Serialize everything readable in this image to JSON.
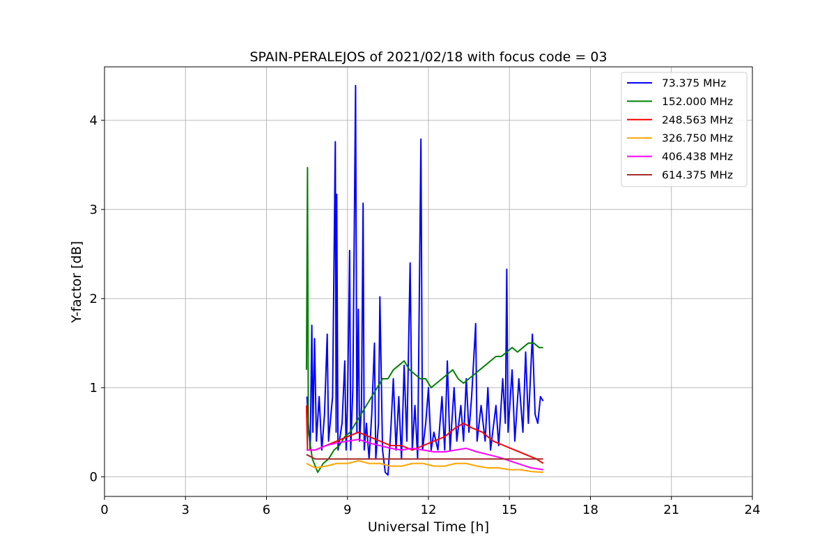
{
  "chart_data": {
    "type": "line",
    "title": "SPAIN-PERALEJOS of 2021/02/18 with focus code = 03",
    "xlabel": "Universal Time [h]",
    "ylabel": "Y-factor [dB]",
    "xlim": [
      0,
      24
    ],
    "ylim": [
      -0.22,
      4.6
    ],
    "xticks": [
      0,
      3,
      6,
      9,
      12,
      15,
      18,
      21,
      24
    ],
    "yticks": [
      0,
      1,
      2,
      3,
      4
    ],
    "grid": true,
    "legend_position": "top-right",
    "series": [
      {
        "name": " 73.375 MHz",
        "color": "#0000ff",
        "points": [
          [
            7.5,
            0.9
          ],
          [
            7.55,
            0.6
          ],
          [
            7.62,
            0.3
          ],
          [
            7.68,
            1.7
          ],
          [
            7.72,
            0.5
          ],
          [
            7.78,
            1.55
          ],
          [
            7.85,
            0.4
          ],
          [
            7.95,
            0.9
          ],
          [
            8.05,
            0.3
          ],
          [
            8.15,
            0.7
          ],
          [
            8.25,
            1.6
          ],
          [
            8.3,
            0.4
          ],
          [
            8.45,
            0.9
          ],
          [
            8.55,
            3.76
          ],
          [
            8.58,
            0.5
          ],
          [
            8.6,
            3.17
          ],
          [
            8.65,
            0.3
          ],
          [
            8.8,
            0.6
          ],
          [
            8.9,
            1.3
          ],
          [
            8.95,
            0.3
          ],
          [
            9.0,
            0.8
          ],
          [
            9.08,
            2.54
          ],
          [
            9.12,
            0.3
          ],
          [
            9.2,
            1.0
          ],
          [
            9.3,
            4.39
          ],
          [
            9.35,
            0.5
          ],
          [
            9.4,
            1.88
          ],
          [
            9.45,
            0.4
          ],
          [
            9.52,
            0.8
          ],
          [
            9.58,
            3.07
          ],
          [
            9.62,
            0.3
          ],
          [
            9.7,
            0.6
          ],
          [
            9.8,
            0.2
          ],
          [
            9.9,
            0.7
          ],
          [
            10.0,
            1.5
          ],
          [
            10.05,
            0.2
          ],
          [
            10.15,
            0.6
          ],
          [
            10.2,
            2.02
          ],
          [
            10.3,
            0.3
          ],
          [
            10.4,
            0.05
          ],
          [
            10.5,
            0.02
          ],
          [
            10.6,
            0.5
          ],
          [
            10.7,
            1.1
          ],
          [
            10.8,
            0.3
          ],
          [
            10.9,
            0.9
          ],
          [
            11.0,
            0.2
          ],
          [
            11.1,
            1.25
          ],
          [
            11.2,
            0.4
          ],
          [
            11.32,
            2.4
          ],
          [
            11.4,
            0.3
          ],
          [
            11.5,
            0.8
          ],
          [
            11.6,
            0.2
          ],
          [
            11.72,
            3.79
          ],
          [
            11.78,
            0.3
          ],
          [
            11.9,
            0.6
          ],
          [
            12.0,
            1.0
          ],
          [
            12.1,
            0.3
          ],
          [
            12.2,
            0.5
          ],
          [
            12.35,
            0.3
          ],
          [
            12.5,
            0.9
          ],
          [
            12.6,
            0.3
          ],
          [
            12.7,
            1.3
          ],
          [
            12.8,
            0.3
          ],
          [
            12.95,
            1.0
          ],
          [
            13.05,
            0.4
          ],
          [
            13.2,
            0.8
          ],
          [
            13.3,
            0.4
          ],
          [
            13.4,
            1.1
          ],
          [
            13.5,
            0.5
          ],
          [
            13.6,
            0.9
          ],
          [
            13.75,
            1.72
          ],
          [
            13.8,
            0.4
          ],
          [
            13.95,
            0.8
          ],
          [
            14.1,
            0.4
          ],
          [
            14.2,
            1.0
          ],
          [
            14.3,
            0.3
          ],
          [
            14.5,
            0.8
          ],
          [
            14.6,
            0.35
          ],
          [
            14.75,
            1.1
          ],
          [
            14.85,
            0.6
          ],
          [
            14.9,
            2.33
          ],
          [
            14.95,
            0.5
          ],
          [
            15.1,
            1.2
          ],
          [
            15.2,
            0.4
          ],
          [
            15.35,
            1.1
          ],
          [
            15.5,
            0.5
          ],
          [
            15.6,
            1.4
          ],
          [
            15.7,
            0.6
          ],
          [
            15.85,
            1.6
          ],
          [
            15.95,
            0.7
          ],
          [
            16.05,
            0.6
          ],
          [
            16.15,
            0.9
          ],
          [
            16.25,
            0.85
          ]
        ]
      },
      {
        "name": "152.000 MHz",
        "color": "#008000",
        "points": [
          [
            7.48,
            1.2
          ],
          [
            7.52,
            3.47
          ],
          [
            7.55,
            0.5
          ],
          [
            7.7,
            0.2
          ],
          [
            7.9,
            0.05
          ],
          [
            8.1,
            0.15
          ],
          [
            8.3,
            0.2
          ],
          [
            8.5,
            0.3
          ],
          [
            8.7,
            0.35
          ],
          [
            8.9,
            0.45
          ],
          [
            9.1,
            0.5
          ],
          [
            9.3,
            0.6
          ],
          [
            9.5,
            0.7
          ],
          [
            9.7,
            0.8
          ],
          [
            9.9,
            0.9
          ],
          [
            10.1,
            1.0
          ],
          [
            10.3,
            1.1
          ],
          [
            10.5,
            1.1
          ],
          [
            10.7,
            1.2
          ],
          [
            10.9,
            1.25
          ],
          [
            11.1,
            1.3
          ],
          [
            11.3,
            1.2
          ],
          [
            11.5,
            1.15
          ],
          [
            11.7,
            1.1
          ],
          [
            11.9,
            1.1
          ],
          [
            12.1,
            1.0
          ],
          [
            12.3,
            1.05
          ],
          [
            12.5,
            1.1
          ],
          [
            12.7,
            1.15
          ],
          [
            12.9,
            1.2
          ],
          [
            13.1,
            1.1
          ],
          [
            13.3,
            1.05
          ],
          [
            13.5,
            1.1
          ],
          [
            13.7,
            1.15
          ],
          [
            13.9,
            1.2
          ],
          [
            14.1,
            1.25
          ],
          [
            14.3,
            1.3
          ],
          [
            14.5,
            1.35
          ],
          [
            14.7,
            1.35
          ],
          [
            14.9,
            1.4
          ],
          [
            15.1,
            1.45
          ],
          [
            15.3,
            1.4
          ],
          [
            15.5,
            1.45
          ],
          [
            15.7,
            1.5
          ],
          [
            15.9,
            1.5
          ],
          [
            16.1,
            1.45
          ],
          [
            16.25,
            1.45
          ]
        ]
      },
      {
        "name": "248.563 MHz",
        "color": "#ff0000",
        "points": [
          [
            7.48,
            0.8
          ],
          [
            7.52,
            0.3
          ],
          [
            7.8,
            0.3
          ],
          [
            8.2,
            0.35
          ],
          [
            8.6,
            0.4
          ],
          [
            9.0,
            0.45
          ],
          [
            9.4,
            0.5
          ],
          [
            9.8,
            0.45
          ],
          [
            10.2,
            0.4
          ],
          [
            10.6,
            0.35
          ],
          [
            11.0,
            0.35
          ],
          [
            11.4,
            0.3
          ],
          [
            11.8,
            0.35
          ],
          [
            12.2,
            0.4
          ],
          [
            12.6,
            0.45
          ],
          [
            13.0,
            0.55
          ],
          [
            13.3,
            0.6
          ],
          [
            13.6,
            0.55
          ],
          [
            14.0,
            0.5
          ],
          [
            14.4,
            0.4
          ],
          [
            14.8,
            0.35
          ],
          [
            15.2,
            0.3
          ],
          [
            15.6,
            0.25
          ],
          [
            16.0,
            0.2
          ],
          [
            16.25,
            0.15
          ]
        ]
      },
      {
        "name": "326.750 MHz",
        "color": "#ffa500",
        "points": [
          [
            7.48,
            0.15
          ],
          [
            7.8,
            0.1
          ],
          [
            8.2,
            0.12
          ],
          [
            8.6,
            0.15
          ],
          [
            9.0,
            0.15
          ],
          [
            9.4,
            0.18
          ],
          [
            9.8,
            0.15
          ],
          [
            10.2,
            0.15
          ],
          [
            10.6,
            0.12
          ],
          [
            11.0,
            0.12
          ],
          [
            11.4,
            0.15
          ],
          [
            11.8,
            0.15
          ],
          [
            12.2,
            0.12
          ],
          [
            12.6,
            0.12
          ],
          [
            13.0,
            0.15
          ],
          [
            13.4,
            0.15
          ],
          [
            13.8,
            0.12
          ],
          [
            14.2,
            0.1
          ],
          [
            14.6,
            0.1
          ],
          [
            15.0,
            0.08
          ],
          [
            15.4,
            0.08
          ],
          [
            15.8,
            0.06
          ],
          [
            16.25,
            0.05
          ]
        ]
      },
      {
        "name": "406.438 MHz",
        "color": "#ff00ff",
        "points": [
          [
            7.48,
            0.3
          ],
          [
            7.8,
            0.3
          ],
          [
            8.2,
            0.35
          ],
          [
            8.6,
            0.38
          ],
          [
            9.0,
            0.4
          ],
          [
            9.4,
            0.42
          ],
          [
            9.8,
            0.38
          ],
          [
            10.2,
            0.35
          ],
          [
            10.6,
            0.32
          ],
          [
            11.0,
            0.3
          ],
          [
            11.4,
            0.32
          ],
          [
            11.8,
            0.3
          ],
          [
            12.2,
            0.28
          ],
          [
            12.6,
            0.28
          ],
          [
            13.0,
            0.3
          ],
          [
            13.4,
            0.32
          ],
          [
            13.8,
            0.28
          ],
          [
            14.2,
            0.25
          ],
          [
            14.6,
            0.22
          ],
          [
            15.0,
            0.18
          ],
          [
            15.4,
            0.14
          ],
          [
            15.8,
            0.1
          ],
          [
            16.25,
            0.08
          ]
        ]
      },
      {
        "name": "614.375 MHz",
        "color": "#a52a2a",
        "points": [
          [
            7.48,
            0.25
          ],
          [
            7.8,
            0.2
          ],
          [
            8.2,
            0.2
          ],
          [
            8.6,
            0.2
          ],
          [
            9.0,
            0.2
          ],
          [
            9.4,
            0.2
          ],
          [
            9.8,
            0.2
          ],
          [
            10.2,
            0.2
          ],
          [
            10.6,
            0.2
          ],
          [
            11.0,
            0.2
          ],
          [
            11.4,
            0.2
          ],
          [
            11.8,
            0.2
          ],
          [
            12.2,
            0.2
          ],
          [
            12.6,
            0.2
          ],
          [
            13.0,
            0.2
          ],
          [
            13.4,
            0.2
          ],
          [
            13.8,
            0.2
          ],
          [
            14.2,
            0.2
          ],
          [
            14.6,
            0.2
          ],
          [
            15.0,
            0.2
          ],
          [
            15.4,
            0.2
          ],
          [
            15.8,
            0.2
          ],
          [
            16.25,
            0.2
          ]
        ]
      }
    ]
  }
}
